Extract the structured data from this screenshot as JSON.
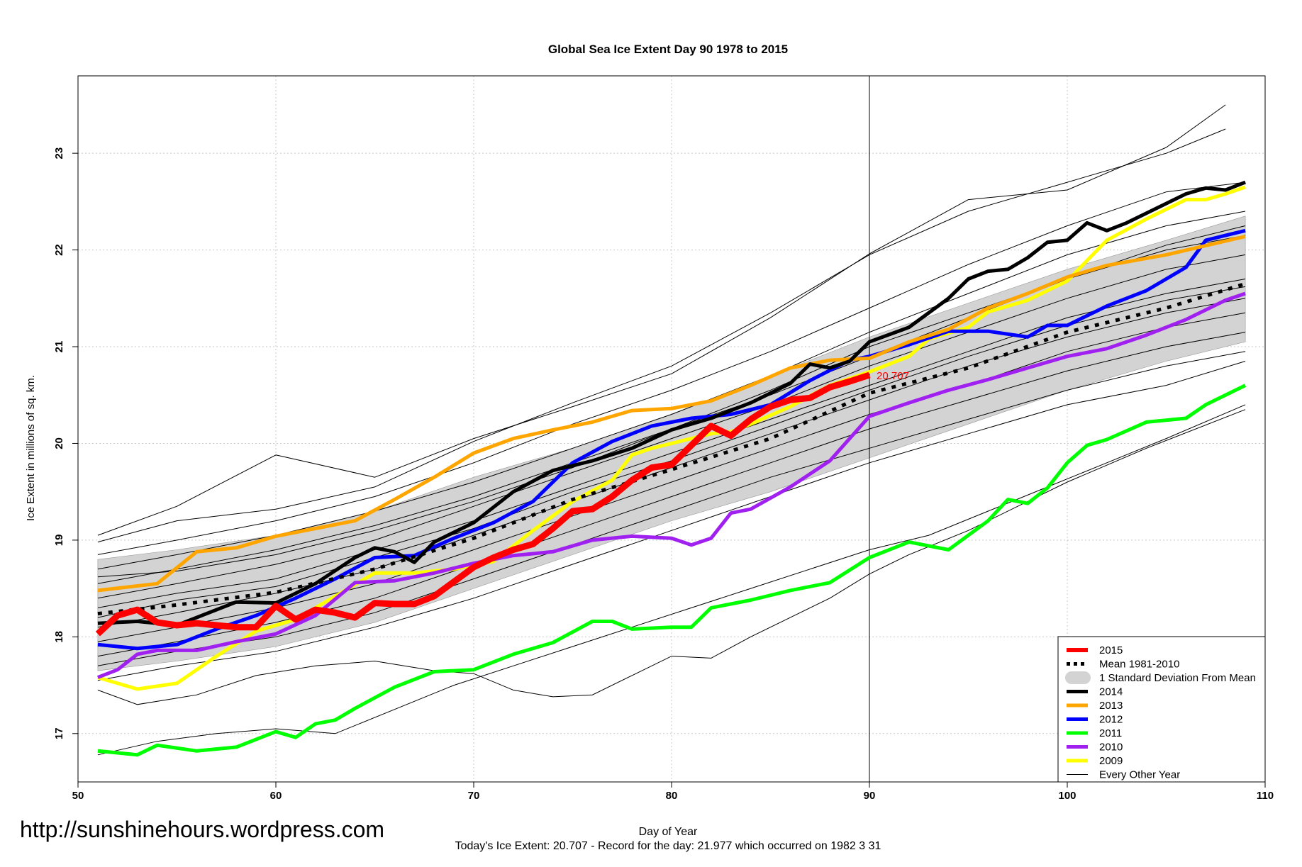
{
  "chart_data": {
    "type": "line",
    "title": "Global Sea Ice Extent Day 90 1978 to 2015",
    "xlabel": "Day of Year",
    "ylabel": "Ice Extent in millions of sq. km.",
    "xlim": [
      50,
      110
    ],
    "ylim": [
      16.5,
      23.8
    ],
    "xticks": [
      50,
      60,
      70,
      80,
      90,
      100,
      110
    ],
    "yticks": [
      17,
      18,
      19,
      20,
      21,
      22,
      23
    ],
    "grid": true,
    "vline_x": 90,
    "legend_position": "bottom-right",
    "annotation": {
      "text": "20.707",
      "x": 90,
      "y": 20.707,
      "color": "#ff0000"
    },
    "std_band": {
      "name": "1 Standard Deviation From Mean",
      "color": "#d3d3d3",
      "x": [
        51,
        55,
        60,
        65,
        70,
        75,
        80,
        85,
        90,
        95,
        100,
        105,
        109
      ],
      "upper": [
        18.8,
        18.9,
        19.05,
        19.3,
        19.65,
        19.95,
        20.3,
        20.7,
        21.1,
        21.45,
        21.8,
        22.1,
        22.35
      ],
      "lower": [
        17.65,
        17.75,
        17.9,
        18.15,
        18.5,
        18.85,
        19.2,
        19.5,
        19.85,
        20.2,
        20.55,
        20.85,
        21.05
      ]
    },
    "series": [
      {
        "name": "2015",
        "color": "#ff0000",
        "width": 9,
        "dash": "",
        "x": [
          51,
          52,
          53,
          54,
          55,
          56,
          57,
          58,
          59,
          60,
          61,
          62,
          63,
          64,
          65,
          66,
          67,
          68,
          69,
          70,
          71,
          72,
          73,
          74,
          75,
          76,
          77,
          78,
          79,
          80,
          81,
          82,
          83,
          84,
          85,
          86,
          87,
          88,
          89,
          90
        ],
        "values": [
          18.03,
          18.22,
          18.28,
          18.15,
          18.12,
          18.14,
          18.12,
          18.1,
          18.1,
          18.32,
          18.18,
          18.28,
          18.25,
          18.2,
          18.35,
          18.34,
          18.34,
          18.42,
          18.57,
          18.72,
          18.82,
          18.9,
          18.96,
          19.12,
          19.3,
          19.32,
          19.45,
          19.62,
          19.75,
          19.78,
          19.98,
          20.18,
          20.08,
          20.25,
          20.38,
          20.45,
          20.47,
          20.58,
          20.64,
          20.707
        ]
      },
      {
        "name": "Mean 1981-2010",
        "color": "#000000",
        "width": 5,
        "dash": "6,9",
        "x": [
          51,
          55,
          60,
          65,
          70,
          75,
          80,
          85,
          90,
          95,
          100,
          105,
          109
        ],
        "values": [
          18.24,
          18.33,
          18.46,
          18.7,
          19.02,
          19.42,
          19.73,
          20.05,
          20.52,
          20.78,
          21.15,
          21.4,
          21.65
        ]
      },
      {
        "name": "2014",
        "color": "#000000",
        "width": 5,
        "dash": "",
        "x": [
          51,
          53,
          55,
          58,
          60,
          62,
          64,
          65,
          66,
          67,
          68,
          70,
          72,
          74,
          76,
          78,
          80,
          82,
          84,
          86,
          87,
          88,
          89,
          90,
          92,
          94,
          95,
          96,
          97,
          98,
          99,
          100,
          101,
          102,
          103,
          105,
          106,
          107,
          108,
          109
        ],
        "values": [
          18.14,
          18.16,
          18.12,
          18.36,
          18.35,
          18.55,
          18.82,
          18.92,
          18.88,
          18.77,
          18.98,
          19.18,
          19.5,
          19.72,
          19.82,
          19.95,
          20.14,
          20.26,
          20.42,
          20.62,
          20.82,
          20.78,
          20.85,
          21.05,
          21.2,
          21.5,
          21.7,
          21.78,
          21.8,
          21.92,
          22.08,
          22.1,
          22.28,
          22.2,
          22.28,
          22.48,
          22.58,
          22.64,
          22.62,
          22.7
        ]
      },
      {
        "name": "2013",
        "color": "#ffa500",
        "width": 5,
        "dash": "",
        "x": [
          51,
          54,
          56,
          58,
          60,
          62,
          64,
          66,
          68,
          70,
          72,
          74,
          76,
          78,
          80,
          82,
          84,
          86,
          88,
          90,
          92,
          94,
          96,
          98,
          100,
          102,
          105,
          109
        ],
        "values": [
          18.48,
          18.55,
          18.88,
          18.92,
          19.04,
          19.12,
          19.2,
          19.42,
          19.65,
          19.9,
          20.05,
          20.14,
          20.22,
          20.34,
          20.36,
          20.44,
          20.6,
          20.78,
          20.86,
          20.88,
          21.05,
          21.18,
          21.4,
          21.55,
          21.72,
          21.84,
          21.95,
          22.14
        ]
      },
      {
        "name": "2012",
        "color": "#0000ff",
        "width": 5,
        "dash": "",
        "x": [
          51,
          53,
          55,
          57,
          59,
          61,
          63,
          65,
          67,
          69,
          71,
          73,
          75,
          77,
          79,
          81,
          83,
          85,
          87,
          89,
          90,
          92,
          94,
          96,
          98,
          99,
          100,
          102,
          104,
          106,
          107,
          108,
          109
        ],
        "values": [
          17.92,
          17.88,
          17.92,
          18.08,
          18.22,
          18.4,
          18.6,
          18.82,
          18.84,
          19.02,
          19.18,
          19.4,
          19.8,
          20.02,
          20.18,
          20.26,
          20.3,
          20.4,
          20.65,
          20.86,
          20.9,
          21.02,
          21.16,
          21.16,
          21.1,
          21.22,
          21.22,
          21.42,
          21.58,
          21.82,
          22.1,
          22.15,
          22.2
        ]
      },
      {
        "name": "2011",
        "color": "#00ff00",
        "width": 5,
        "dash": "",
        "x": [
          51,
          53,
          54,
          56,
          58,
          60,
          61,
          62,
          63,
          64,
          66,
          68,
          70,
          72,
          74,
          76,
          77,
          78,
          80,
          81,
          82,
          84,
          86,
          88,
          90,
          92,
          94,
          96,
          97,
          98,
          99,
          100,
          101,
          102,
          104,
          106,
          107,
          109
        ],
        "values": [
          16.82,
          16.78,
          16.88,
          16.82,
          16.86,
          17.02,
          16.96,
          17.1,
          17.14,
          17.26,
          17.48,
          17.64,
          17.66,
          17.82,
          17.94,
          18.16,
          18.16,
          18.08,
          18.1,
          18.1,
          18.3,
          18.38,
          18.48,
          18.56,
          18.82,
          18.98,
          18.9,
          19.2,
          19.42,
          19.38,
          19.54,
          19.8,
          19.98,
          20.04,
          20.22,
          20.26,
          20.4,
          20.6
        ]
      },
      {
        "name": "2010",
        "color": "#a020f0",
        "width": 5,
        "dash": "",
        "x": [
          51,
          52,
          53,
          54,
          56,
          58,
          60,
          62,
          64,
          66,
          68,
          70,
          72,
          74,
          76,
          78,
          80,
          81,
          82,
          83,
          84,
          86,
          88,
          90,
          92,
          94,
          96,
          98,
          100,
          102,
          104,
          106,
          108,
          109
        ],
        "values": [
          17.58,
          17.66,
          17.82,
          17.86,
          17.86,
          17.95,
          18.03,
          18.22,
          18.56,
          18.58,
          18.66,
          18.76,
          18.84,
          18.88,
          19.0,
          19.04,
          19.02,
          18.95,
          19.02,
          19.28,
          19.32,
          19.55,
          19.82,
          20.28,
          20.42,
          20.55,
          20.66,
          20.78,
          20.9,
          20.98,
          21.12,
          21.28,
          21.48,
          21.55
        ]
      },
      {
        "name": "2009",
        "color": "#ffff00",
        "width": 5,
        "dash": "",
        "x": [
          51,
          53,
          55,
          57,
          59,
          61,
          63,
          65,
          67,
          69,
          71,
          73,
          75,
          77,
          78,
          79,
          80,
          81,
          82,
          83,
          84,
          86,
          88,
          90,
          92,
          93,
          94,
          95,
          96,
          98,
          100,
          102,
          104,
          106,
          107,
          108,
          109
        ],
        "values": [
          17.58,
          17.46,
          17.52,
          17.8,
          18.06,
          18.18,
          18.42,
          18.66,
          18.66,
          18.7,
          18.78,
          19.1,
          19.4,
          19.62,
          19.88,
          19.95,
          20.0,
          20.05,
          20.1,
          20.12,
          20.2,
          20.38,
          20.6,
          20.74,
          20.9,
          21.08,
          21.14,
          21.2,
          21.36,
          21.48,
          21.68,
          22.1,
          22.32,
          22.52,
          22.52,
          22.58,
          22.65
        ]
      },
      {
        "name": "Every Other Year",
        "color": "#000000",
        "width": 1,
        "dash": "",
        "x": [
          51,
          55,
          60,
          65,
          70,
          75,
          80,
          85,
          90,
          95,
          100,
          105,
          108
        ],
        "values": [
          19.05,
          19.35,
          19.88,
          19.65,
          20.05,
          20.38,
          20.72,
          21.3,
          21.96,
          22.52,
          22.62,
          23.06,
          23.5
        ]
      }
    ],
    "thin_lines": [
      {
        "x": [
          51,
          55,
          60,
          65,
          70,
          75,
          80,
          85,
          90,
          95,
          100,
          105,
          108
        ],
        "values": [
          18.98,
          19.2,
          19.32,
          19.55,
          20.02,
          20.42,
          20.8,
          21.35,
          21.95,
          22.4,
          22.7,
          23.0,
          23.25
        ]
      },
      {
        "x": [
          51,
          55,
          60,
          65,
          70,
          75,
          80,
          85,
          90,
          95,
          100,
          105,
          109
        ],
        "values": [
          18.85,
          19.0,
          19.2,
          19.45,
          19.8,
          20.2,
          20.55,
          20.95,
          21.4,
          21.85,
          22.25,
          22.6,
          22.7
        ]
      },
      {
        "x": [
          51,
          55,
          60,
          65,
          70,
          75,
          80,
          85,
          90,
          95,
          100,
          105,
          109
        ],
        "values": [
          18.7,
          18.85,
          19.05,
          19.3,
          19.6,
          19.95,
          20.3,
          20.7,
          21.15,
          21.55,
          21.95,
          22.25,
          22.4
        ]
      },
      {
        "x": [
          51,
          55,
          60,
          65,
          70,
          75,
          80,
          85,
          90,
          95,
          100,
          105,
          109
        ],
        "values": [
          18.55,
          18.7,
          18.9,
          19.15,
          19.45,
          19.8,
          20.15,
          20.5,
          20.9,
          21.3,
          21.7,
          22.0,
          22.15
        ]
      },
      {
        "x": [
          51,
          55,
          60,
          65,
          70,
          75,
          80,
          85,
          90,
          95,
          100,
          105,
          109
        ],
        "values": [
          18.4,
          18.55,
          18.75,
          19.0,
          19.35,
          19.7,
          20.05,
          20.4,
          20.8,
          21.15,
          21.5,
          21.8,
          21.95
        ]
      },
      {
        "x": [
          51,
          55,
          60,
          65,
          70,
          75,
          80,
          85,
          90,
          95,
          100,
          105,
          109
        ],
        "values": [
          18.3,
          18.45,
          18.6,
          18.9,
          19.2,
          19.55,
          19.9,
          20.25,
          20.6,
          20.95,
          21.3,
          21.55,
          21.7
        ]
      },
      {
        "x": [
          51,
          55,
          60,
          65,
          70,
          75,
          80,
          85,
          90,
          95,
          100,
          105,
          109
        ],
        "values": [
          18.1,
          18.25,
          18.45,
          18.7,
          19.05,
          19.4,
          19.75,
          20.1,
          20.45,
          20.8,
          21.1,
          21.35,
          21.5
        ]
      },
      {
        "x": [
          51,
          55,
          60,
          65,
          70,
          75,
          80,
          85,
          90,
          95,
          100,
          105,
          109
        ],
        "values": [
          17.95,
          18.1,
          18.3,
          18.55,
          18.9,
          19.25,
          19.6,
          19.95,
          20.3,
          20.6,
          20.95,
          21.2,
          21.35
        ]
      },
      {
        "x": [
          51,
          55,
          60,
          65,
          70,
          75,
          80,
          85,
          90,
          95,
          100,
          105,
          109
        ],
        "values": [
          17.8,
          17.95,
          18.15,
          18.4,
          18.75,
          19.1,
          19.45,
          19.8,
          20.15,
          20.45,
          20.75,
          21.0,
          21.15
        ]
      },
      {
        "x": [
          51,
          55,
          60,
          65,
          70,
          75,
          80,
          85,
          90,
          95,
          100,
          105,
          109
        ],
        "values": [
          17.7,
          17.85,
          18.0,
          18.25,
          18.6,
          18.95,
          19.3,
          19.65,
          19.95,
          20.25,
          20.55,
          20.8,
          20.95
        ]
      },
      {
        "x": [
          51,
          55,
          60,
          65,
          70,
          75,
          80,
          85,
          90,
          95,
          100,
          105,
          109
        ],
        "values": [
          17.55,
          17.7,
          17.85,
          18.1,
          18.4,
          18.75,
          19.1,
          19.45,
          19.8,
          20.1,
          20.4,
          20.6,
          20.85
        ]
      },
      {
        "x": [
          51,
          53,
          56,
          59,
          62,
          65,
          68,
          70,
          72,
          74,
          76,
          78,
          80,
          82,
          84,
          86,
          88,
          90,
          92,
          95,
          98,
          100,
          104,
          109
        ],
        "values": [
          17.45,
          17.3,
          17.4,
          17.6,
          17.7,
          17.75,
          17.65,
          17.62,
          17.45,
          17.38,
          17.4,
          17.6,
          17.8,
          17.78,
          18.0,
          18.2,
          18.4,
          18.65,
          18.85,
          19.1,
          19.4,
          19.6,
          19.95,
          20.35
        ]
      },
      {
        "x": [
          51,
          54,
          57,
          60,
          63,
          66,
          69,
          72,
          75,
          78,
          81,
          84,
          87,
          90,
          93,
          96,
          99,
          102,
          105,
          109
        ],
        "values": [
          16.78,
          16.92,
          17.0,
          17.05,
          17.0,
          17.25,
          17.5,
          17.7,
          17.9,
          18.1,
          18.3,
          18.5,
          18.7,
          18.9,
          19.05,
          19.3,
          19.55,
          19.8,
          20.05,
          20.4
        ]
      },
      {
        "x": [
          51,
          55,
          60,
          65,
          70,
          75,
          80,
          85,
          90,
          95,
          100,
          105,
          109
        ],
        "values": [
          18.62,
          18.68,
          18.85,
          19.1,
          19.4,
          19.75,
          20.15,
          20.55,
          21.0,
          21.35,
          21.7,
          22.05,
          22.25
        ]
      },
      {
        "x": [
          51,
          55,
          60,
          65,
          70,
          75,
          80,
          85,
          90,
          95,
          100,
          105,
          109
        ],
        "values": [
          18.2,
          18.38,
          18.52,
          18.82,
          19.12,
          19.5,
          19.82,
          20.18,
          20.55,
          20.9,
          21.22,
          21.48,
          21.62
        ]
      }
    ]
  },
  "watermark": "http://sunshinehours.wordpress.com",
  "footer_note": "Today's Ice Extent: 20.707  - Record for the day: 21.977 which occurred on 1982 3 31"
}
